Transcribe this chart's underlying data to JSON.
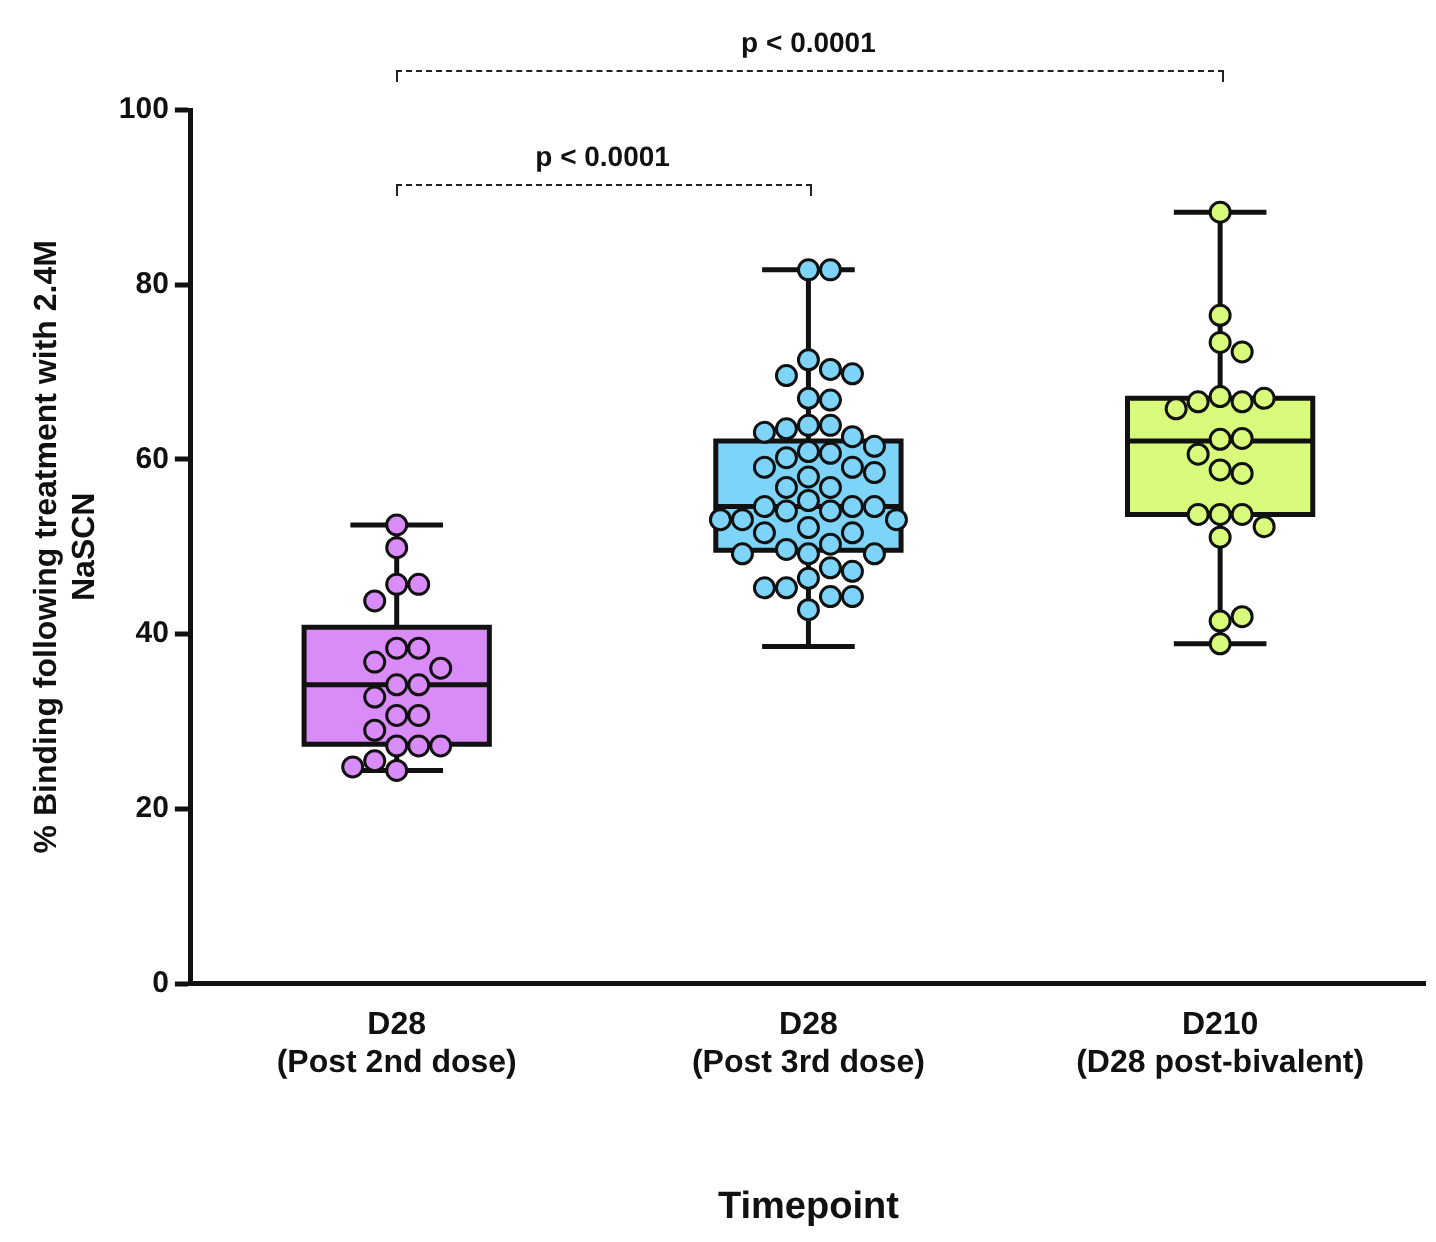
{
  "chart_data": {
    "type": "box",
    "categories": [
      "D28\n(Post 2nd dose)",
      "D28\n(Post 3rd dose)",
      "D210\n(D28 post-bivalent)"
    ],
    "colors": [
      "#d98cf7",
      "#7dd4f8",
      "#d9fb7c"
    ],
    "boxes": [
      {
        "low": 24.4,
        "q1": 27.4,
        "median": 34.2,
        "q3": 40.8,
        "high": 52.5
      },
      {
        "low": 38.6,
        "q1": 49.6,
        "median": 54.6,
        "q3": 62.1,
        "high": 81.7
      },
      {
        "low": 38.9,
        "q1": 53.7,
        "median": 62.1,
        "q3": 67.0,
        "high": 88.3
      }
    ],
    "series": [
      {
        "type": "scatter",
        "color": "#d98cf7",
        "x": [
          "D28\n(Post 2nd dose)",
          "D28\n(Post 2nd dose)",
          "D28\n(Post 2nd dose)",
          "D28\n(Post 2nd dose)",
          "D28\n(Post 2nd dose)",
          "D28\n(Post 2nd dose)",
          "D28\n(Post 2nd dose)",
          "D28\n(Post 2nd dose)",
          "D28\n(Post 2nd dose)",
          "D28\n(Post 2nd dose)",
          "D28\n(Post 2nd dose)",
          "D28\n(Post 2nd dose)",
          "D28\n(Post 2nd dose)",
          "D28\n(Post 2nd dose)",
          "D28\n(Post 2nd dose)",
          "D28\n(Post 2nd dose)",
          "D28\n(Post 2nd dose)",
          "D28\n(Post 2nd dose)",
          "D28\n(Post 2nd dose)",
          "D28\n(Post 2nd dose)",
          "D28\n(Post 2nd dose)"
        ],
        "values": [
          52.5,
          49.9,
          45.7,
          45.7,
          43.8,
          38.4,
          38.4,
          36.8,
          36.1,
          34.2,
          34.2,
          32.8,
          30.7,
          30.7,
          29.0,
          27.2,
          27.2,
          27.2,
          25.5,
          24.4,
          24.8
        ]
      },
      {
        "type": "scatter",
        "color": "#7dd4f8",
        "x": [
          "D28\n(Post 3rd dose)",
          "D28\n(Post 3rd dose)",
          "D28\n(Post 3rd dose)",
          "D28\n(Post 3rd dose)",
          "D28\n(Post 3rd dose)",
          "D28\n(Post 3rd dose)",
          "D28\n(Post 3rd dose)",
          "D28\n(Post 3rd dose)",
          "D28\n(Post 3rd dose)",
          "D28\n(Post 3rd dose)",
          "D28\n(Post 3rd dose)",
          "D28\n(Post 3rd dose)",
          "D28\n(Post 3rd dose)",
          "D28\n(Post 3rd dose)",
          "D28\n(Post 3rd dose)",
          "D28\n(Post 3rd dose)",
          "D28\n(Post 3rd dose)",
          "D28\n(Post 3rd dose)",
          "D28\n(Post 3rd dose)",
          "D28\n(Post 3rd dose)",
          "D28\n(Post 3rd dose)",
          "D28\n(Post 3rd dose)",
          "D28\n(Post 3rd dose)",
          "D28\n(Post 3rd dose)",
          "D28\n(Post 3rd dose)",
          "D28\n(Post 3rd dose)",
          "D28\n(Post 3rd dose)",
          "D28\n(Post 3rd dose)",
          "D28\n(Post 3rd dose)",
          "D28\n(Post 3rd dose)",
          "D28\n(Post 3rd dose)",
          "D28\n(Post 3rd dose)",
          "D28\n(Post 3rd dose)",
          "D28\n(Post 3rd dose)",
          "D28\n(Post 3rd dose)",
          "D28\n(Post 3rd dose)",
          "D28\n(Post 3rd dose)",
          "D28\n(Post 3rd dose)",
          "D28\n(Post 3rd dose)",
          "D28\n(Post 3rd dose)",
          "D28\n(Post 3rd dose)",
          "D28\n(Post 3rd dose)",
          "D28\n(Post 3rd dose)",
          "D28\n(Post 3rd dose)",
          "D28\n(Post 3rd dose)",
          "D28\n(Post 3rd dose)",
          "D28\n(Post 3rd dose)",
          "D28\n(Post 3rd dose)"
        ],
        "values": [
          81.7,
          81.7,
          71.4,
          70.3,
          69.6,
          69.8,
          67.0,
          66.8,
          63.9,
          63.9,
          63.5,
          62.6,
          63.1,
          61.5,
          60.9,
          60.7,
          60.2,
          59.1,
          59.1,
          58.5,
          58.0,
          56.8,
          56.8,
          55.3,
          54.6,
          54.6,
          54.6,
          54.1,
          54.1,
          53.1,
          53.1,
          53.1,
          52.2,
          51.6,
          51.6,
          50.3,
          49.7,
          49.2,
          49.2,
          49.2,
          47.6,
          47.2,
          46.4,
          45.3,
          45.3,
          44.3,
          44.3,
          42.8
        ]
      },
      {
        "type": "scatter",
        "color": "#d9fb7c",
        "x": [
          "D210\n(D28 post-bivalent)",
          "D210\n(D28 post-bivalent)",
          "D210\n(D28 post-bivalent)",
          "D210\n(D28 post-bivalent)",
          "D210\n(D28 post-bivalent)",
          "D210\n(D28 post-bivalent)",
          "D210\n(D28 post-bivalent)",
          "D210\n(D28 post-bivalent)",
          "D210\n(D28 post-bivalent)",
          "D210\n(D28 post-bivalent)",
          "D210\n(D28 post-bivalent)",
          "D210\n(D28 post-bivalent)",
          "D210\n(D28 post-bivalent)",
          "D210\n(D28 post-bivalent)",
          "D210\n(D28 post-bivalent)",
          "D210\n(D28 post-bivalent)",
          "D210\n(D28 post-bivalent)",
          "D210\n(D28 post-bivalent)",
          "D210\n(D28 post-bivalent)",
          "D210\n(D28 post-bivalent)",
          "D210\n(D28 post-bivalent)",
          "D210\n(D28 post-bivalent)"
        ],
        "values": [
          88.3,
          76.5,
          73.4,
          72.3,
          67.2,
          66.6,
          66.6,
          67.0,
          65.8,
          62.3,
          62.4,
          60.6,
          58.8,
          58.4,
          53.7,
          53.7,
          53.7,
          52.3,
          51.1,
          41.5,
          38.9,
          42.0
        ]
      }
    ],
    "ylabel": "% Binding following treatment with 2.4M NaSCN",
    "xlabel": "Timepoint",
    "ylim": [
      0,
      100
    ],
    "yticks": [
      0,
      20,
      40,
      60,
      80,
      100
    ],
    "marker": "circle",
    "grid": false,
    "legend": false,
    "annotations": [
      "p < 0.0001",
      "p < 0.0001"
    ]
  }
}
